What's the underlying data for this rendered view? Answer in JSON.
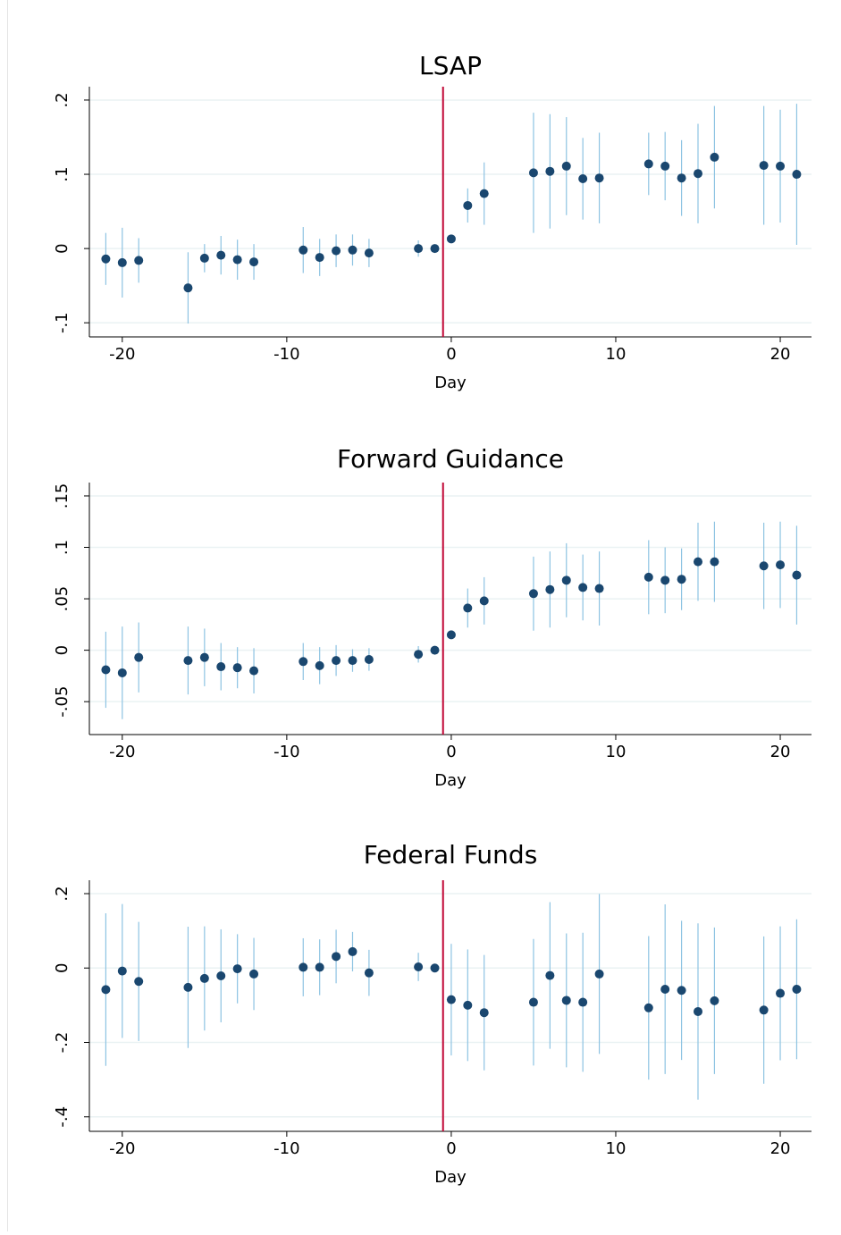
{
  "chart_data": [
    {
      "type": "scatter",
      "title": "LSAP",
      "x_label": "Day",
      "x": [
        -21,
        -20,
        -19,
        -16,
        -15,
        -14,
        -13,
        -12,
        -9,
        -8,
        -7,
        -6,
        -5,
        -2,
        -1,
        0,
        1,
        2,
        5,
        6,
        7,
        8,
        9,
        12,
        13,
        14,
        15,
        16,
        19,
        20,
        21
      ],
      "values": [
        -0.014,
        -0.019,
        -0.016,
        -0.053,
        -0.013,
        -0.009,
        -0.015,
        -0.018,
        -0.002,
        -0.012,
        -0.003,
        -0.002,
        -0.006,
        0.0,
        0.0,
        0.013,
        0.058,
        0.074,
        0.102,
        0.104,
        0.111,
        0.094,
        0.095,
        0.114,
        0.111,
        0.095,
        0.101,
        0.123,
        0.112,
        0.111,
        0.1
      ],
      "errors": [
        0.035,
        0.047,
        0.03,
        0.048,
        0.019,
        0.026,
        0.027,
        0.024,
        0.031,
        0.025,
        0.022,
        0.021,
        0.019,
        0.011,
        0,
        0.002,
        0.023,
        0.042,
        0.081,
        0.077,
        0.066,
        0.055,
        0.061,
        0.042,
        0.046,
        0.051,
        0.067,
        0.069,
        0.08,
        0.076,
        0.095
      ],
      "xlim": [
        -22,
        21.9
      ],
      "ylim": [
        -0.119,
        0.218
      ],
      "xticks": [
        -20,
        -10,
        0,
        10,
        20
      ],
      "yticks": [
        {
          "value": -0.1,
          "label": "-.1"
        },
        0,
        {
          "value": 0.1,
          "label": ".1"
        },
        {
          "value": 0.2,
          "label": ".2"
        }
      ],
      "reference_line": -0.5,
      "grid": true,
      "color": "#1a476f",
      "error_color": "#8dc3e2",
      "reference_color": "#c10534"
    },
    {
      "type": "scatter",
      "title": "Forward Guidance",
      "x_label": "Day",
      "x": [
        -21,
        -20,
        -19,
        -16,
        -15,
        -14,
        -13,
        -12,
        -9,
        -8,
        -7,
        -6,
        -5,
        -2,
        -1,
        0,
        1,
        2,
        5,
        6,
        7,
        8,
        9,
        12,
        13,
        14,
        15,
        16,
        19,
        20,
        21
      ],
      "values": [
        -0.019,
        -0.022,
        -0.007,
        -0.01,
        -0.007,
        -0.016,
        -0.017,
        -0.02,
        -0.011,
        -0.015,
        -0.01,
        -0.01,
        -0.009,
        -0.004,
        0.0,
        0.015,
        0.041,
        0.048,
        0.055,
        0.059,
        0.068,
        0.061,
        0.06,
        0.071,
        0.068,
        0.069,
        0.086,
        0.086,
        0.082,
        0.083,
        0.073
      ],
      "errors": [
        0.037,
        0.045,
        0.034,
        0.033,
        0.028,
        0.023,
        0.02,
        0.022,
        0.018,
        0.018,
        0.015,
        0.011,
        0.011,
        0.008,
        0,
        0.002,
        0.019,
        0.023,
        0.036,
        0.037,
        0.036,
        0.032,
        0.036,
        0.036,
        0.032,
        0.03,
        0.038,
        0.039,
        0.042,
        0.042,
        0.048
      ],
      "xlim": [
        -22,
        21.9
      ],
      "ylim": [
        -0.082,
        0.163
      ],
      "xticks": [
        -20,
        -10,
        0,
        10,
        20
      ],
      "yticks": [
        {
          "value": -0.05,
          "label": "-.05"
        },
        0,
        {
          "value": 0.05,
          "label": ".05"
        },
        {
          "value": 0.1,
          "label": ".1"
        },
        {
          "value": 0.15,
          "label": ".15"
        }
      ],
      "reference_line": -0.5,
      "grid": true,
      "color": "#1a476f",
      "error_color": "#8dc3e2",
      "reference_color": "#c10534"
    },
    {
      "type": "scatter",
      "title": "Federal Funds",
      "x_label": "Day",
      "x": [
        -21,
        -20,
        -19,
        -16,
        -15,
        -14,
        -13,
        -12,
        -9,
        -8,
        -7,
        -6,
        -5,
        -2,
        -1,
        0,
        1,
        2,
        5,
        6,
        7,
        8,
        9,
        12,
        13,
        14,
        15,
        16,
        19,
        20,
        21
      ],
      "values": [
        -0.058,
        -0.008,
        -0.036,
        -0.052,
        -0.028,
        -0.021,
        -0.002,
        -0.016,
        0.002,
        0.002,
        0.031,
        0.044,
        -0.013,
        0.003,
        0.0,
        -0.085,
        -0.1,
        -0.12,
        -0.092,
        -0.02,
        -0.087,
        -0.092,
        -0.016,
        -0.107,
        -0.057,
        -0.06,
        -0.117,
        -0.088,
        -0.113,
        -0.068,
        -0.057
      ],
      "errors": [
        0.205,
        0.18,
        0.16,
        0.163,
        0.14,
        0.125,
        0.093,
        0.097,
        0.078,
        0.075,
        0.072,
        0.053,
        0.062,
        0.038,
        0,
        0.15,
        0.15,
        0.155,
        0.17,
        0.197,
        0.18,
        0.187,
        0.215,
        0.193,
        0.228,
        0.187,
        0.237,
        0.197,
        0.198,
        0.18,
        0.188
      ],
      "xlim": [
        -22,
        21.9
      ],
      "ylim": [
        -0.439,
        0.236
      ],
      "xticks": [
        -20,
        -10,
        0,
        10,
        20
      ],
      "yticks": [
        {
          "value": -0.4,
          "label": "-.4"
        },
        {
          "value": -0.2,
          "label": "-.2"
        },
        0,
        {
          "value": 0.2,
          "label": ".2"
        }
      ],
      "reference_line": -0.5,
      "grid": true,
      "color": "#1a476f",
      "error_color": "#8dc3e2",
      "reference_color": "#c10534"
    }
  ]
}
